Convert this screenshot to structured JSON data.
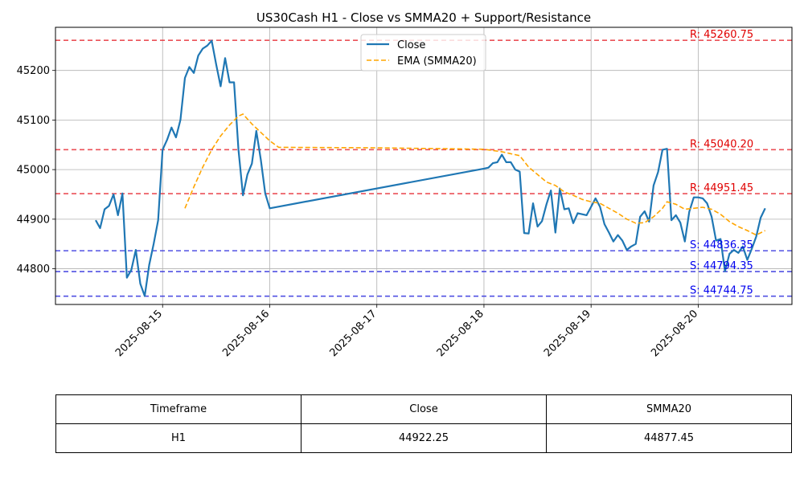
{
  "chart_data": {
    "type": "line",
    "title": "US30Cash H1 - Close vs SMMA20 + Support/Resistance",
    "xlim": [
      "2025-08-14T00:00",
      "2025-08-20T21:00"
    ],
    "ylim": [
      44728,
      45287
    ],
    "x_ticks": [
      "2025-08-15",
      "2025-08-16",
      "2025-08-17",
      "2025-08-18",
      "2025-08-19",
      "2025-08-20"
    ],
    "y_ticks": [
      44800,
      44900,
      45000,
      45100,
      45200
    ],
    "grid": true,
    "legend_position": "top-center",
    "series": [
      {
        "name": "Close",
        "color": "#1f77b4",
        "style": "solid",
        "points": [
          [
            "2025-08-14T09:00",
            44898
          ],
          [
            "2025-08-14T10:00",
            44882
          ],
          [
            "2025-08-14T11:00",
            44920
          ],
          [
            "2025-08-14T12:00",
            44927
          ],
          [
            "2025-08-14T13:00",
            44950
          ],
          [
            "2025-08-14T14:00",
            44908
          ],
          [
            "2025-08-14T15:00",
            44952
          ],
          [
            "2025-08-14T16:00",
            44782
          ],
          [
            "2025-08-14T17:00",
            44798
          ],
          [
            "2025-08-14T18:00",
            44838
          ],
          [
            "2025-08-14T19:00",
            44770
          ],
          [
            "2025-08-14T20:00",
            44745
          ],
          [
            "2025-08-14T21:00",
            44808
          ],
          [
            "2025-08-14T22:00",
            44850
          ],
          [
            "2025-08-14T23:00",
            44898
          ],
          [
            "2025-08-15T00:00",
            45040
          ],
          [
            "2025-08-15T01:00",
            45060
          ],
          [
            "2025-08-15T02:00",
            45085
          ],
          [
            "2025-08-15T03:00",
            45065
          ],
          [
            "2025-08-15T04:00",
            45100
          ],
          [
            "2025-08-15T05:00",
            45185
          ],
          [
            "2025-08-15T06:00",
            45207
          ],
          [
            "2025-08-15T07:00",
            45195
          ],
          [
            "2025-08-15T08:00",
            45230
          ],
          [
            "2025-08-15T09:00",
            45244
          ],
          [
            "2025-08-15T10:00",
            45250
          ],
          [
            "2025-08-15T11:00",
            45260
          ],
          [
            "2025-08-15T12:00",
            45212
          ],
          [
            "2025-08-15T13:00",
            45168
          ],
          [
            "2025-08-15T14:00",
            45225
          ],
          [
            "2025-08-15T15:00",
            45176
          ],
          [
            "2025-08-15T16:00",
            45176
          ],
          [
            "2025-08-15T17:00",
            45040
          ],
          [
            "2025-08-15T18:00",
            44948
          ],
          [
            "2025-08-15T19:00",
            44990
          ],
          [
            "2025-08-15T20:00",
            45012
          ],
          [
            "2025-08-15T21:00",
            45078
          ],
          [
            "2025-08-15T22:00",
            45020
          ],
          [
            "2025-08-15T23:00",
            44952
          ],
          [
            "2025-08-16T00:00",
            44922
          ],
          [
            "2025-08-18T00:00",
            45002
          ],
          [
            "2025-08-18T01:00",
            45004
          ],
          [
            "2025-08-18T02:00",
            45013
          ],
          [
            "2025-08-18T03:00",
            45015
          ],
          [
            "2025-08-18T04:00",
            45030
          ],
          [
            "2025-08-18T05:00",
            45015
          ],
          [
            "2025-08-18T06:00",
            45015
          ],
          [
            "2025-08-18T07:00",
            45000
          ],
          [
            "2025-08-18T08:00",
            44996
          ],
          [
            "2025-08-18T09:00",
            44872
          ],
          [
            "2025-08-18T10:00",
            44871
          ],
          [
            "2025-08-18T11:00",
            44932
          ],
          [
            "2025-08-18T12:00",
            44885
          ],
          [
            "2025-08-18T13:00",
            44896
          ],
          [
            "2025-08-18T14:00",
            44930
          ],
          [
            "2025-08-18T15:00",
            44958
          ],
          [
            "2025-08-18T16:00",
            44873
          ],
          [
            "2025-08-18T17:00",
            44962
          ],
          [
            "2025-08-18T18:00",
            44920
          ],
          [
            "2025-08-18T19:00",
            44922
          ],
          [
            "2025-08-18T20:00",
            44892
          ],
          [
            "2025-08-18T21:00",
            44912
          ],
          [
            "2025-08-18T22:00",
            44910
          ],
          [
            "2025-08-18T23:00",
            44908
          ],
          [
            "2025-08-19T00:00",
            44925
          ],
          [
            "2025-08-19T01:00",
            44942
          ],
          [
            "2025-08-19T02:00",
            44925
          ],
          [
            "2025-08-19T03:00",
            44890
          ],
          [
            "2025-08-19T04:00",
            44873
          ],
          [
            "2025-08-19T05:00",
            44855
          ],
          [
            "2025-08-19T06:00",
            44868
          ],
          [
            "2025-08-19T07:00",
            44857
          ],
          [
            "2025-08-19T08:00",
            44838
          ],
          [
            "2025-08-19T09:00",
            44845
          ],
          [
            "2025-08-19T10:00",
            44850
          ],
          [
            "2025-08-19T11:00",
            44905
          ],
          [
            "2025-08-19T12:00",
            44916
          ],
          [
            "2025-08-19T13:00",
            44895
          ],
          [
            "2025-08-19T14:00",
            44968
          ],
          [
            "2025-08-19T15:00",
            44995
          ],
          [
            "2025-08-19T16:00",
            45040
          ],
          [
            "2025-08-19T17:00",
            45042
          ],
          [
            "2025-08-19T18:00",
            44898
          ],
          [
            "2025-08-19T19:00",
            44908
          ],
          [
            "2025-08-19T20:00",
            44893
          ],
          [
            "2025-08-19T21:00",
            44855
          ],
          [
            "2025-08-19T22:00",
            44915
          ],
          [
            "2025-08-19T23:00",
            44944
          ],
          [
            "2025-08-20T00:00",
            44944
          ],
          [
            "2025-08-20T01:00",
            44942
          ],
          [
            "2025-08-20T02:00",
            44932
          ],
          [
            "2025-08-20T03:00",
            44905
          ],
          [
            "2025-08-20T04:00",
            44857
          ],
          [
            "2025-08-20T05:00",
            44860
          ],
          [
            "2025-08-20T06:00",
            44795
          ],
          [
            "2025-08-20T07:00",
            44830
          ],
          [
            "2025-08-20T08:00",
            44838
          ],
          [
            "2025-08-20T09:00",
            44832
          ],
          [
            "2025-08-20T10:00",
            44845
          ],
          [
            "2025-08-20T11:00",
            44818
          ],
          [
            "2025-08-20T12:00",
            44840
          ],
          [
            "2025-08-20T13:00",
            44865
          ],
          [
            "2025-08-20T14:00",
            44903
          ],
          [
            "2025-08-20T15:00",
            44922
          ]
        ]
      },
      {
        "name": "EMA (SMMA20)",
        "color": "#ffa500",
        "style": "dashed",
        "points": [
          [
            "2025-08-15T05:00",
            44922
          ],
          [
            "2025-08-15T07:00",
            44965
          ],
          [
            "2025-08-15T09:00",
            45005
          ],
          [
            "2025-08-15T11:00",
            45040
          ],
          [
            "2025-08-15T13:00",
            45068
          ],
          [
            "2025-08-15T15:00",
            45090
          ],
          [
            "2025-08-15T17:00",
            45108
          ],
          [
            "2025-08-15T18:00",
            45112
          ],
          [
            "2025-08-15T20:00",
            45092
          ],
          [
            "2025-08-15T22:00",
            45075
          ],
          [
            "2025-08-16T00:00",
            45058
          ],
          [
            "2025-08-16T02:00",
            45045
          ],
          [
            "2025-08-17T00:00",
            45044
          ],
          [
            "2025-08-18T00:00",
            45041
          ],
          [
            "2025-08-18T04:00",
            45036
          ],
          [
            "2025-08-18T08:00",
            45028
          ],
          [
            "2025-08-18T10:00",
            45005
          ],
          [
            "2025-08-18T12:00",
            44990
          ],
          [
            "2025-08-18T14:00",
            44975
          ],
          [
            "2025-08-18T16:00",
            44968
          ],
          [
            "2025-08-18T18:00",
            44955
          ],
          [
            "2025-08-18T20:00",
            44948
          ],
          [
            "2025-08-18T22:00",
            44940
          ],
          [
            "2025-08-19T00:00",
            44935
          ],
          [
            "2025-08-19T02:00",
            44932
          ],
          [
            "2025-08-19T04:00",
            44922
          ],
          [
            "2025-08-19T06:00",
            44912
          ],
          [
            "2025-08-19T08:00",
            44900
          ],
          [
            "2025-08-19T10:00",
            44892
          ],
          [
            "2025-08-19T12:00",
            44893
          ],
          [
            "2025-08-19T14:00",
            44905
          ],
          [
            "2025-08-19T16:00",
            44922
          ],
          [
            "2025-08-19T17:00",
            44935
          ],
          [
            "2025-08-19T19:00",
            44930
          ],
          [
            "2025-08-19T21:00",
            44920
          ],
          [
            "2025-08-19T23:00",
            44922
          ],
          [
            "2025-08-20T01:00",
            44924
          ],
          [
            "2025-08-20T03:00",
            44920
          ],
          [
            "2025-08-20T05:00",
            44910
          ],
          [
            "2025-08-20T07:00",
            44895
          ],
          [
            "2025-08-20T09:00",
            44885
          ],
          [
            "2025-08-20T11:00",
            44877
          ],
          [
            "2025-08-20T13:00",
            44868
          ],
          [
            "2025-08-20T15:00",
            44877
          ]
        ]
      }
    ],
    "levels": [
      {
        "kind": "resistance",
        "value": 45260.75,
        "label": "R: 45260.75",
        "color": "#e8333a"
      },
      {
        "kind": "resistance",
        "value": 45040.2,
        "label": "R: 45040.20",
        "color": "#e8333a"
      },
      {
        "kind": "resistance",
        "value": 44951.45,
        "label": "R: 44951.45",
        "color": "#e8333a"
      },
      {
        "kind": "support",
        "value": 44836.35,
        "label": "S: 44836.35",
        "color": "#3333dd"
      },
      {
        "kind": "support",
        "value": 44794.35,
        "label": "S: 44794.35",
        "color": "#3333dd"
      },
      {
        "kind": "support",
        "value": 44744.75,
        "label": "S: 44744.75",
        "color": "#3333dd"
      }
    ]
  },
  "table": {
    "headers": [
      "Timeframe",
      "Close",
      "SMMA20"
    ],
    "row": [
      "H1",
      "44922.25",
      "44877.45"
    ]
  }
}
